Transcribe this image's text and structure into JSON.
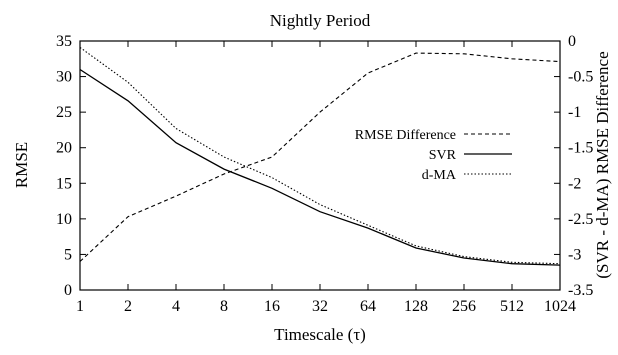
{
  "chart_data": {
    "type": "line",
    "title": "Nightly Period",
    "xlabel": "Timescale (τ)",
    "ylabel_left": "RMSE",
    "ylabel_right": "(SVR - d-MA) RMSE Difference",
    "x_tick_labels": [
      "1",
      "2",
      "4",
      "8",
      "16",
      "32",
      "64",
      "128",
      "256",
      "512",
      "1024"
    ],
    "x_scale": "log2",
    "ylim_left": [
      0,
      35
    ],
    "yticks_left": [
      "0",
      "5",
      "10",
      "15",
      "20",
      "25",
      "30",
      "35"
    ],
    "ylim_right": [
      -3.5,
      0
    ],
    "yticks_right": [
      "-3.5",
      "-3",
      "-2.5",
      "-2",
      "-1.5",
      "-1",
      "-0.5",
      "0"
    ],
    "grid": false,
    "legend_position": "right-middle",
    "series": [
      {
        "name": "RMSE Difference",
        "axis": "right",
        "style": "dashed",
        "values": [
          -3.1,
          -2.47,
          -2.18,
          -1.87,
          -1.63,
          -1.0,
          -0.45,
          -0.17,
          -0.18,
          -0.25,
          -0.29
        ]
      },
      {
        "name": "SVR",
        "axis": "left",
        "style": "solid",
        "values": [
          31.0,
          26.6,
          20.7,
          17.0,
          14.3,
          11.0,
          8.7,
          5.9,
          4.5,
          3.7,
          3.5
        ]
      },
      {
        "name": "d-MA",
        "axis": "left",
        "style": "dotted",
        "values": [
          34.1,
          29.2,
          22.7,
          18.7,
          15.8,
          12.0,
          9.1,
          6.2,
          4.7,
          3.9,
          3.7
        ]
      }
    ]
  }
}
